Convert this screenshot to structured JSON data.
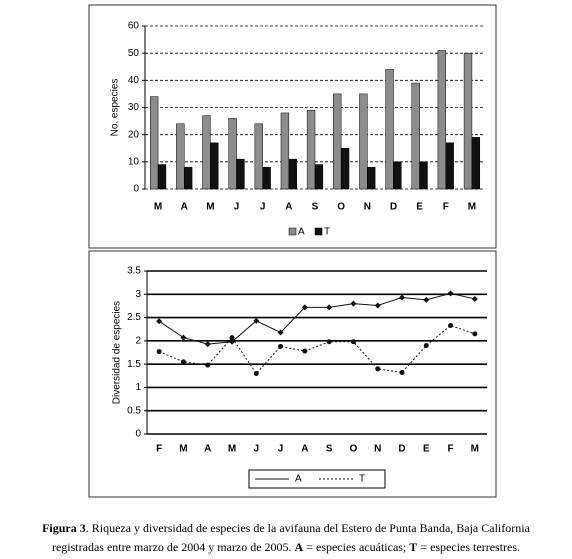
{
  "chart_data": [
    {
      "type": "bar",
      "y_label": "No. especies",
      "categories": [
        "M",
        "A",
        "M",
        "J",
        "J",
        "A",
        "S",
        "O",
        "N",
        "D",
        "E",
        "F",
        "M"
      ],
      "series": [
        {
          "name": "A",
          "color": "#8c8c8c",
          "values": [
            34,
            24,
            27,
            26,
            24,
            28,
            29,
            35,
            35,
            44,
            39,
            51,
            50
          ]
        },
        {
          "name": "T",
          "color": "#111111",
          "values": [
            9,
            8,
            17,
            11,
            8,
            11,
            9,
            15,
            8,
            10,
            10,
            17,
            19
          ]
        }
      ],
      "ylim": [
        0,
        60
      ],
      "yticks": [
        0,
        10,
        20,
        30,
        40,
        50,
        60
      ],
      "grid": "dashed",
      "legend": "bottom"
    },
    {
      "type": "line",
      "y_label": "Diversidad de especies",
      "categories": [
        "F",
        "M",
        "A",
        "M",
        "J",
        "J",
        "A",
        "S",
        "O",
        "N",
        "D",
        "E",
        "F",
        "M"
      ],
      "series": [
        {
          "name": "A",
          "color": "#111111",
          "values": [
            2.42,
            2.07,
            1.93,
            1.98,
            2.43,
            2.18,
            2.72,
            2.72,
            2.8,
            2.76,
            2.93,
            2.88,
            3.02,
            2.9
          ]
        },
        {
          "name": "T",
          "color": "#111111",
          "values": [
            1.77,
            1.55,
            1.48,
            2.07,
            1.3,
            1.88,
            1.78,
            1.98,
            1.98,
            1.4,
            1.32,
            1.9,
            2.33,
            2.15
          ]
        }
      ],
      "ylim": [
        0,
        3.5
      ],
      "yticks": [
        0,
        0.5,
        1,
        1.5,
        2,
        2.5,
        3,
        3.5
      ],
      "grid": "solid",
      "legend": "bottom"
    }
  ],
  "caption": {
    "label": "Figura 3",
    "text": ". Riqueza y diversidad de especies de la avifauna del Estero de Punta Banda, Baja California",
    "text2": "registradas entre marzo de 2004 y marzo de 2005.",
    "a": "A",
    "a_text": "= especies acuáticas;",
    "t": "T",
    "t_text": "= especies terrestres."
  }
}
